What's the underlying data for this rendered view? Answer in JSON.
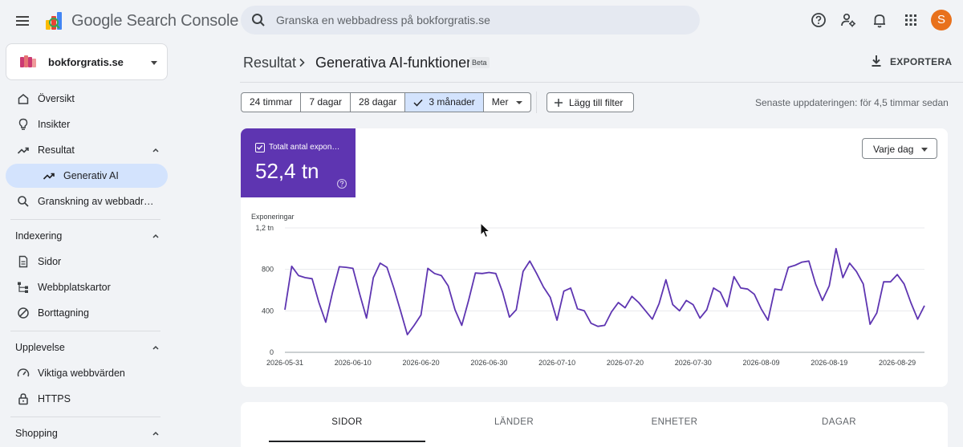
{
  "app": {
    "title": "Google Search Console",
    "logo_icon": "search-console-logo"
  },
  "search": {
    "placeholder": "Granska en webbadress på bokforgratis.se",
    "icon": "search-icon"
  },
  "header_icons": [
    "help-icon",
    "manage-users-icon",
    "notifications-icon",
    "apps-grid-icon"
  ],
  "user": {
    "avatar_letter": "S",
    "avatar_color": "#e8711c"
  },
  "property": {
    "name": "bokforgratis.se"
  },
  "sidebar": {
    "items": [
      {
        "label": "Översikt",
        "icon": "home-icon"
      },
      {
        "label": "Insikter",
        "icon": "lightbulb-icon"
      },
      {
        "label": "Resultat",
        "icon": "trending-up-icon"
      },
      {
        "label": "Generativ AI",
        "icon": "trending-up-icon"
      },
      {
        "label": "Granskning av webbadr…",
        "icon": "search-icon"
      }
    ],
    "sections": [
      {
        "label": "Indexering",
        "items": [
          {
            "label": "Sidor",
            "icon": "pages-icon"
          },
          {
            "label": "Webbplatskartor",
            "icon": "sitemap-icon"
          },
          {
            "label": "Borttagning",
            "icon": "removal-icon"
          }
        ]
      },
      {
        "label": "Upplevelse",
        "items": [
          {
            "label": "Viktiga webbvärden",
            "icon": "speed-icon"
          },
          {
            "label": "HTTPS",
            "icon": "lock-icon"
          }
        ]
      },
      {
        "label": "Shopping",
        "items": []
      }
    ]
  },
  "breadcrumb": {
    "parent": "Resultat",
    "current": "Generativa AI-funktioner",
    "badge": "Beta"
  },
  "export": {
    "label": "EXPORTERA"
  },
  "filters": {
    "ranges": [
      "24 timmar",
      "7 dagar",
      "28 dagar",
      "3 månader"
    ],
    "selected": "3 månader",
    "more": "Mer",
    "add_filter": "Lägg till filter",
    "last_update": "Senaste uppdateringen: för 4,5 timmar sedan"
  },
  "metric": {
    "label": "Totalt antal exponeringar",
    "value": "52,4 tn",
    "color": "#5e35b1"
  },
  "granularity": {
    "label": "Varje dag"
  },
  "chart_data": {
    "type": "line",
    "ylabel": "Exponeringar",
    "ytick_labels": [
      "0",
      "400",
      "800",
      "1,2 tn"
    ],
    "yticks": [
      0,
      400,
      800,
      1200
    ],
    "ylim": [
      0,
      1200
    ],
    "xtick_labels": [
      "2026-05-31",
      "2026-06-10",
      "2026-06-20",
      "2026-06-30",
      "2026-07-10",
      "2026-07-20",
      "2026-07-30",
      "2026-08-09",
      "2026-08-19",
      "2026-08-29"
    ],
    "x_start": "2026-05-31",
    "x_end": "2026-08-29",
    "grid": true,
    "series": [
      {
        "color": "#5e35b1",
        "values": [
          410,
          830,
          740,
          720,
          710,
          480,
          290,
          580,
          825,
          820,
          810,
          560,
          330,
          720,
          860,
          820,
          620,
          400,
          170,
          260,
          360,
          810,
          760,
          740,
          640,
          410,
          260,
          500,
          765,
          760,
          770,
          760,
          580,
          340,
          410,
          780,
          880,
          760,
          630,
          530,
          310,
          590,
          620,
          420,
          400,
          280,
          250,
          260,
          390,
          480,
          430,
          540,
          480,
          400,
          320,
          470,
          700,
          460,
          400,
          500,
          460,
          330,
          410,
          620,
          580,
          440,
          730,
          620,
          610,
          560,
          420,
          310,
          610,
          600,
          820,
          840,
          870,
          880,
          660,
          500,
          640,
          1000,
          720,
          860,
          780,
          660,
          270,
          380,
          680,
          680,
          750,
          660,
          480,
          320,
          450
        ]
      }
    ]
  },
  "tabs": [
    "SIDOR",
    "LÄNDER",
    "ENHETER",
    "DAGAR"
  ]
}
